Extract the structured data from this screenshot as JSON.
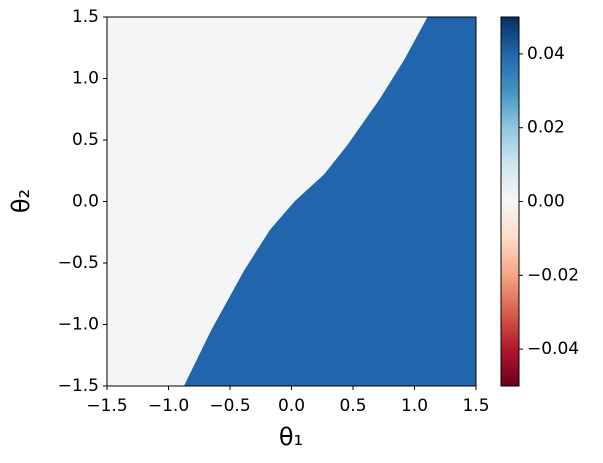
{
  "chart_data": {
    "type": "heatmap",
    "xlabel": "θ₁",
    "ylabel": "θ₂",
    "xlim": [
      -1.5,
      1.5
    ],
    "ylim": [
      -1.5,
      1.5
    ],
    "xticks": [
      {
        "value": -1.5,
        "label": "−1.5"
      },
      {
        "value": -1.0,
        "label": "−1.0"
      },
      {
        "value": -0.5,
        "label": "−0.5"
      },
      {
        "value": 0,
        "label": "0.0"
      },
      {
        "value": 0.5,
        "label": "0.5"
      },
      {
        "value": 1.0,
        "label": "1.0"
      },
      {
        "value": 1.5,
        "label": "1.5"
      }
    ],
    "yticks": [
      {
        "value": -1.5,
        "label": "−1.5"
      },
      {
        "value": -1.0,
        "label": "−1.0"
      },
      {
        "value": -0.5,
        "label": "−0.5"
      },
      {
        "value": 0,
        "label": "0.0"
      },
      {
        "value": 0.5,
        "label": "0.5"
      },
      {
        "value": 1.0,
        "label": "1.0"
      },
      {
        "value": 1.5,
        "label": "1.5"
      }
    ],
    "boundary_x": [
      -0.87,
      -0.65,
      -0.38,
      -0.17,
      0.03,
      0.27,
      0.46,
      0.72,
      0.92,
      1.11
    ],
    "boundary_y": [
      -1.5,
      -1.05,
      -0.56,
      -0.23,
      0,
      0.22,
      0.46,
      0.83,
      1.15,
      1.5
    ],
    "left_value": 0.001,
    "right_value": 0.04,
    "colormap": [
      "#67001f",
      "#b2182b",
      "#d6604d",
      "#f4a582",
      "#fddbc7",
      "#f7f7f7",
      "#d1e5f0",
      "#92c5de",
      "#4393c3",
      "#2166ac",
      "#053061"
    ],
    "clim": [
      -0.05,
      0.05
    ],
    "cticks": [
      {
        "value": -0.04,
        "label": "−0.04"
      },
      {
        "value": -0.02,
        "label": "−0.02"
      },
      {
        "value": 0,
        "label": "0.00"
      },
      {
        "value": 0.02,
        "label": "0.02"
      },
      {
        "value": 0.04,
        "label": "0.04"
      }
    ]
  }
}
